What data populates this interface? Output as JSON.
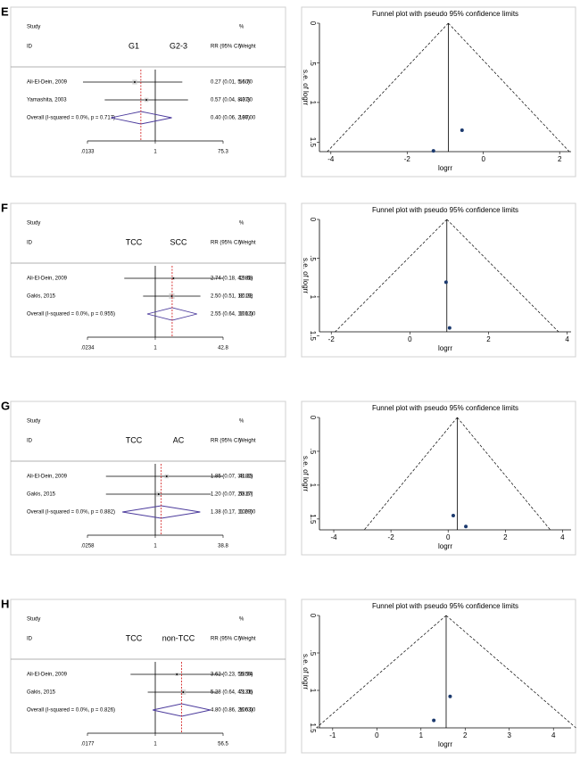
{
  "chart_data": [
    {
      "type": "forest",
      "panel": "E",
      "headers": {
        "study": "Study",
        "pct": "%",
        "id": "ID",
        "left": "G1",
        "right": "G2-3",
        "ci": "RR (95% CI)",
        "weight": "Weight"
      },
      "studies": [
        "Ali-El-Dein, 2009",
        "Yamashita, 2003"
      ],
      "rr": [
        0.27,
        0.57
      ],
      "lo": [
        0.01,
        0.04
      ],
      "hi": [
        5.6,
        8.07
      ],
      "ci_labels": [
        "0.27 (0.01, 5.60)",
        "0.57 (0.04, 8.07)"
      ],
      "weights": [
        56.7,
        43.3
      ],
      "weight_labels": [
        "56.70",
        "43.30"
      ],
      "overall": {
        "label": "Overall  (I-squared = 0.0%, p = 0.717)",
        "rr": 0.4,
        "lo": 0.06,
        "hi": 2.87,
        "ci_label": "0.40 (0.06, 2.87)",
        "weight": 100,
        "weight_label": "100.00"
      },
      "null_value": 1,
      "log_x": true,
      "xlim": [
        0.0133,
        75.3
      ],
      "xticks": [
        {
          "value": 0.0133,
          "label": ".0133"
        },
        1,
        75.3
      ]
    },
    {
      "type": "funnel",
      "title": "Funnel plot with pseudo 95% confidence limits",
      "xlabel": "logrr",
      "ylabel": "s.e. of logrr",
      "x": [
        -1.31,
        -0.56
      ],
      "y": [
        1.61,
        1.35
      ],
      "pooled": -0.92,
      "xlim": [
        -4.3,
        2.3
      ],
      "xticks": [
        -4,
        -2,
        0,
        2
      ],
      "ylim": [
        0,
        1.62
      ],
      "yticks": [
        0,
        {
          "value": 0.5,
          "label": ".5"
        },
        1,
        1.5
      ],
      "reverse_y": true
    },
    {
      "type": "forest",
      "panel": "F",
      "headers": {
        "study": "Study",
        "pct": "%",
        "id": "ID",
        "left": "TCC",
        "right": "SCC",
        "ci": "RR (95% CI)",
        "weight": "Weight"
      },
      "studies": [
        "Ali-El-Dein, 2009",
        "Gakis, 2015"
      ],
      "rr": [
        2.74,
        2.5
      ],
      "lo": [
        0.18,
        0.51
      ],
      "hi": [
        42.81,
        12.19
      ],
      "ci_labels": [
        "2.74 (0.18, 42.81)",
        "2.50 (0.51, 12.19)"
      ],
      "weights": [
        19.68,
        80.32
      ],
      "weight_labels": [
        "19.68",
        "80.32"
      ],
      "overall": {
        "label": "Overall  (I-squared = 0.0%, p = 0.955)",
        "rr": 2.55,
        "lo": 0.64,
        "hi": 10.12,
        "ci_label": "2.55 (0.64, 10.12)",
        "weight": 100,
        "weight_label": "100.00"
      },
      "null_value": 1,
      "log_x": true,
      "xlim": [
        0.0234,
        42.8
      ],
      "xticks": [
        {
          "value": 0.0234,
          "label": ".0234"
        },
        1,
        42.8
      ]
    },
    {
      "type": "funnel",
      "title": "Funnel plot with pseudo 95% confidence limits",
      "xlabel": "logrr",
      "ylabel": "s.e. of logrr",
      "x": [
        1.01,
        0.92
      ],
      "y": [
        1.4,
        0.81
      ],
      "pooled": 0.94,
      "xlim": [
        -2.3,
        4.1
      ],
      "xticks": [
        -2,
        0,
        2,
        4
      ],
      "ylim": [
        0,
        1.45
      ],
      "yticks": [
        0,
        {
          "value": 0.5,
          "label": ".5"
        },
        1,
        1.5
      ],
      "reverse_y": true
    },
    {
      "type": "forest",
      "panel": "G",
      "headers": {
        "study": "Study",
        "pct": "%",
        "id": "ID",
        "left": "TCC",
        "right": "AC",
        "ci": "RR (95% CI)",
        "weight": "Weight"
      },
      "studies": [
        "Ali-El-Dein, 2009",
        "Gakis, 2015"
      ],
      "rr": [
        1.85,
        1.2
      ],
      "lo": [
        0.07,
        0.07
      ],
      "hi": [
        38.82,
        20.17
      ],
      "ci_labels": [
        "1.85 (0.07, 38.82)",
        "1.20 (0.07, 20.17)"
      ],
      "weights": [
        41.33,
        58.67
      ],
      "weight_labels": [
        "41.33",
        "58.67"
      ],
      "overall": {
        "label": "Overall  (I-squared = 0.0%, p = 0.882)",
        "rr": 1.38,
        "lo": 0.17,
        "hi": 11.29,
        "ci_label": "1.38 (0.17, 11.29)",
        "weight": 100,
        "weight_label": "100.00"
      },
      "null_value": 1,
      "log_x": true,
      "xlim": [
        0.0258,
        38.8
      ],
      "xticks": [
        {
          "value": 0.0258,
          "label": ".0258"
        },
        1,
        38.8
      ]
    },
    {
      "type": "funnel",
      "title": "Funnel plot with pseudo 95% confidence limits",
      "xlabel": "logrr",
      "ylabel": "s.e. of logrr",
      "x": [
        0.62,
        0.18
      ],
      "y": [
        1.61,
        1.45
      ],
      "pooled": 0.32,
      "xlim": [
        -4.5,
        4.3
      ],
      "xticks": [
        -4,
        -2,
        0,
        2,
        4
      ],
      "ylim": [
        0,
        1.66
      ],
      "yticks": [
        0,
        {
          "value": 0.5,
          "label": ".5"
        },
        1,
        1.5
      ],
      "reverse_y": true
    },
    {
      "type": "forest",
      "panel": "H",
      "headers": {
        "study": "Study",
        "pct": "%",
        "id": "ID",
        "left": "TCC",
        "right": "non-TCC",
        "ci": "RR (95% CI)",
        "weight": "Weight"
      },
      "studies": [
        "Ali-El-Dein, 2009",
        "Gakis, 2015"
      ],
      "rr": [
        3.62,
        5.28
      ],
      "lo": [
        0.23,
        0.64
      ],
      "hi": [
        56.5,
        43.31
      ],
      "ci_labels": [
        "3.62 (0.23, 56.50)",
        "5.28 (0.64, 43.31)"
      ],
      "weights": [
        28.94,
        71.06
      ],
      "weight_labels": [
        "28.94",
        "71.06"
      ],
      "overall": {
        "label": "Overall  (I-squared = 0.0%, p = 0.826)",
        "rr": 4.8,
        "lo": 0.86,
        "hi": 26.63,
        "ci_label": "4.80 (0.86, 26.63)",
        "weight": 100,
        "weight_label": "100.00"
      },
      "null_value": 1,
      "log_x": true,
      "xlim": [
        0.0177,
        56.5
      ],
      "xticks": [
        {
          "value": 0.0177,
          "label": ".0177"
        },
        1,
        56.5
      ]
    },
    {
      "type": "funnel",
      "title": "Funnel plot with pseudo 95% confidence limits",
      "xlabel": "logrr",
      "ylabel": "s.e. of logrr",
      "x": [
        1.29,
        1.66
      ],
      "y": [
        1.4,
        1.08
      ],
      "pooled": 1.57,
      "xlim": [
        -1.3,
        4.4
      ],
      "xticks": [
        -1,
        0,
        1,
        2,
        3,
        4
      ],
      "ylim": [
        0,
        1.5
      ],
      "yticks": [
        0,
        {
          "value": 0.5,
          "label": ".5"
        },
        1,
        1.5
      ],
      "reverse_y": true
    }
  ]
}
